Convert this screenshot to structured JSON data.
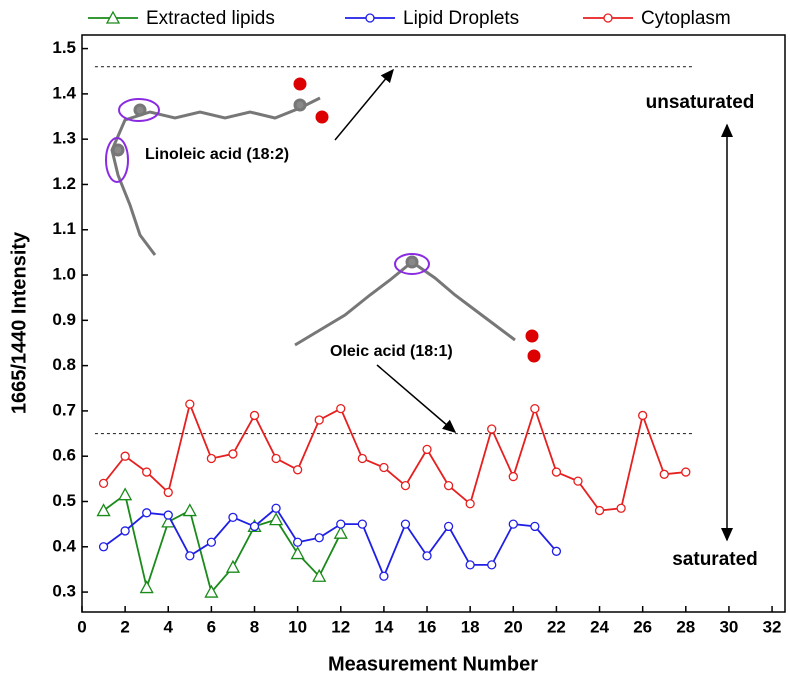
{
  "chart_data": {
    "type": "line",
    "x_label": "Measurement Number",
    "y_label": "1665/1440 Intensity",
    "series": [
      {
        "name": "Extracted lipids",
        "color": "#1a8a1a",
        "marker": "triangle",
        "x": [
          1,
          2,
          3,
          4,
          5,
          6,
          7,
          8,
          9,
          10,
          11,
          12
        ],
        "values": [
          0.48,
          0.515,
          0.31,
          0.455,
          0.48,
          0.3,
          0.355,
          0.445,
          0.46,
          0.385,
          0.335,
          0.43
        ]
      },
      {
        "name": "Lipid Droplets",
        "color": "#1f1fe6",
        "marker": "circle",
        "x": [
          1,
          2,
          3,
          4,
          5,
          6,
          7,
          8,
          9,
          10,
          11,
          12,
          13,
          14,
          15,
          16,
          17,
          18,
          19,
          20,
          21,
          22
        ],
        "values": [
          0.4,
          0.435,
          0.475,
          0.47,
          0.38,
          0.41,
          0.465,
          0.445,
          0.485,
          0.41,
          0.42,
          0.45,
          0.45,
          0.335,
          0.45,
          0.38,
          0.445,
          0.36,
          0.36,
          0.45,
          0.445,
          0.39
        ]
      },
      {
        "name": "Cytoplasm",
        "color": "#e61f1f",
        "marker": "circle",
        "x": [
          1,
          2,
          3,
          4,
          5,
          6,
          7,
          8,
          9,
          10,
          11,
          12,
          13,
          14,
          15,
          16,
          17,
          18,
          19,
          20,
          21,
          22,
          23,
          24,
          25,
          26,
          27,
          28
        ],
        "values": [
          0.54,
          0.6,
          0.565,
          0.52,
          0.715,
          0.595,
          0.605,
          0.69,
          0.595,
          0.57,
          0.68,
          0.705,
          0.595,
          0.575,
          0.535,
          0.615,
          0.535,
          0.495,
          0.66,
          0.555,
          0.705,
          0.565,
          0.545,
          0.48,
          0.485,
          0.69,
          0.56,
          0.565
        ]
      }
    ],
    "reference_lines": [
      1.46,
      0.65
    ],
    "annotations": [
      "Linoleic acid (18:2)",
      "Oleic acid (18:1)",
      "unsaturated",
      "saturated"
    ],
    "xlim": [
      0,
      32.6
    ],
    "xticks": [
      0,
      2,
      4,
      6,
      8,
      10,
      12,
      14,
      16,
      18,
      20,
      22,
      24,
      26,
      28,
      30,
      32
    ],
    "ylim": [
      0.256,
      1.53
    ],
    "yticks": [
      0.3,
      0.4,
      0.5,
      0.6,
      0.7,
      0.8,
      0.9,
      {
        "value": 1,
        "label": "1.0"
      },
      1.1,
      1.2,
      1.3,
      1.4,
      1.5
    ]
  }
}
